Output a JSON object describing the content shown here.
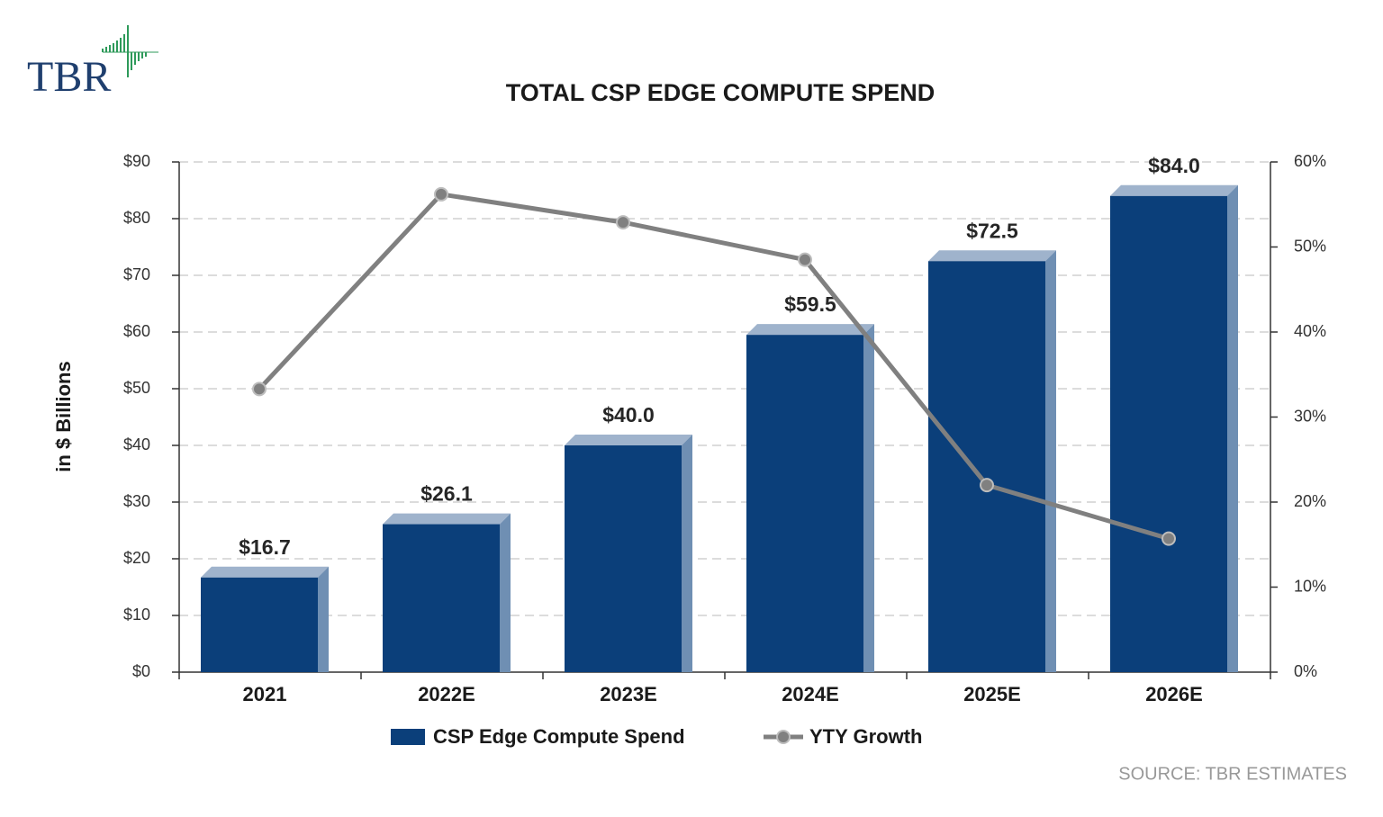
{
  "logo": "TBR",
  "source": "SOURCE: TBR ESTIMATES",
  "chart_data": {
    "type": "bar",
    "title": "TOTAL CSP EDGE COMPUTE SPEND",
    "ylabel": "in $ Billions",
    "categories": [
      "2021",
      "2022E",
      "2023E",
      "2024E",
      "2025E",
      "2026E"
    ],
    "series": [
      {
        "name": "CSP Edge Compute Spend",
        "type": "bar",
        "color": "#0b3f7a",
        "values": [
          16.7,
          26.1,
          40.0,
          59.5,
          72.5,
          84.0
        ],
        "value_labels": [
          "$16.7",
          "$26.1",
          "$40.0",
          "$59.5",
          "$72.5",
          "$84.0"
        ]
      },
      {
        "name": "YTY Growth",
        "type": "line",
        "axis": "y2",
        "color": "#808080",
        "values": [
          33.3,
          56.2,
          52.9,
          48.5,
          22.0,
          15.7
        ]
      }
    ],
    "ylim": [
      0,
      90
    ],
    "yticks": [
      {
        "value": 0,
        "label": "$0"
      },
      {
        "value": 10,
        "label": "$10"
      },
      {
        "value": 20,
        "label": "$20"
      },
      {
        "value": 30,
        "label": "$30"
      },
      {
        "value": 40,
        "label": "$40"
      },
      {
        "value": 50,
        "label": "$50"
      },
      {
        "value": 60,
        "label": "$60"
      },
      {
        "value": 70,
        "label": "$70"
      },
      {
        "value": 80,
        "label": "$80"
      },
      {
        "value": 90,
        "label": "$90"
      }
    ],
    "y2lim": [
      0,
      60
    ],
    "y2ticks": [
      {
        "value": 0,
        "label": "0%"
      },
      {
        "value": 10,
        "label": "10%"
      },
      {
        "value": 20,
        "label": "20%"
      },
      {
        "value": 30,
        "label": "30%"
      },
      {
        "value": 40,
        "label": "40%"
      },
      {
        "value": 50,
        "label": "50%"
      },
      {
        "value": 60,
        "label": "60%"
      }
    ],
    "grid": true,
    "legend": "bottom"
  }
}
